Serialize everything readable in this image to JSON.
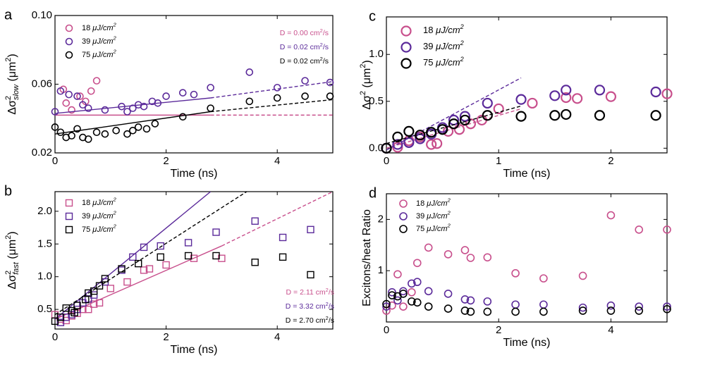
{
  "colors": {
    "c18": "#c84f8c",
    "c39": "#5b2a9a",
    "c75": "#000000"
  },
  "chart_data": [
    {
      "id": "a",
      "panel_label": "a",
      "type": "scatter",
      "marker": "circle",
      "xlabel": "Time (ns)",
      "ylabel": "Δσ²slow (μm²)",
      "ylabel_main": "Δσ",
      "ylabel_sup": "2",
      "ylabel_sub": "slow",
      "ylabel_unit": " (μm",
      "ylabel_unit_sup": "2",
      "ylabel_close": ")",
      "xlim": [
        0,
        5
      ],
      "ylim": [
        0.02,
        0.1
      ],
      "xticks": [
        {
          "v": 0,
          "label": "0"
        },
        {
          "v": 2,
          "label": "2"
        },
        {
          "v": 4,
          "label": "4"
        }
      ],
      "yticks": [
        {
          "v": 0.02,
          "label": "0.02"
        },
        {
          "v": 0.06,
          "label": "0.06"
        },
        {
          "v": 0.1,
          "label": "0.10"
        }
      ],
      "legend": [
        "18 μJ/cm²",
        "39 μJ/cm²",
        "75 μJ/cm²"
      ],
      "annotations": [
        "D = 0.00 cm²/s",
        "D = 0.02 cm²/s",
        "D = 0.02 cm²/s"
      ],
      "series": [
        {
          "name": "18 μJ/cm²",
          "color": "#c84f8c",
          "x": [
            0.15,
            0.3,
            0.45,
            0.55,
            0.65,
            0.75,
            0.2
          ],
          "y": [
            0.057,
            0.045,
            0.053,
            0.05,
            0.056,
            0.062,
            0.049
          ],
          "fit": {
            "solid": [
              [
                0,
                0.042
              ],
              [
                2.8,
                0.042
              ]
            ],
            "dashed": [
              [
                2.8,
                0.042
              ],
              [
                5,
                0.042
              ]
            ]
          }
        },
        {
          "name": "39 μJ/cm²",
          "color": "#5b2a9a",
          "x": [
            0.0,
            0.1,
            0.25,
            0.4,
            0.5,
            0.6,
            0.9,
            1.2,
            1.3,
            1.4,
            1.5,
            1.6,
            1.75,
            1.85,
            2.0,
            2.3,
            2.5,
            2.8,
            3.5,
            4.0,
            4.5,
            4.95
          ],
          "y": [
            0.044,
            0.056,
            0.054,
            0.053,
            0.048,
            0.046,
            0.045,
            0.047,
            0.044,
            0.046,
            0.048,
            0.047,
            0.05,
            0.049,
            0.053,
            0.055,
            0.054,
            0.058,
            0.067,
            0.058,
            0.062,
            0.061
          ],
          "fit": {
            "solid": [
              [
                0,
                0.043
              ],
              [
                2.8,
                0.052
              ]
            ],
            "dashed": [
              [
                2.8,
                0.052
              ],
              [
                5,
                0.0615
              ]
            ]
          }
        },
        {
          "name": "75 μJ/cm²",
          "color": "#000000",
          "x": [
            0.0,
            0.1,
            0.2,
            0.3,
            0.4,
            0.5,
            0.6,
            0.75,
            0.9,
            1.1,
            1.3,
            1.4,
            1.5,
            1.65,
            1.8,
            2.3,
            2.8,
            3.5,
            4.0,
            4.5,
            4.95
          ],
          "y": [
            0.035,
            0.032,
            0.029,
            0.03,
            0.034,
            0.029,
            0.028,
            0.032,
            0.031,
            0.033,
            0.031,
            0.033,
            0.035,
            0.034,
            0.037,
            0.041,
            0.046,
            0.05,
            0.052,
            0.053,
            0.053
          ],
          "fit": {
            "solid": [
              [
                0,
                0.031
              ],
              [
                2.8,
                0.044
              ]
            ],
            "dashed": [
              [
                2.8,
                0.044
              ],
              [
                5,
                0.051
              ]
            ]
          }
        }
      ]
    },
    {
      "id": "b",
      "panel_label": "b",
      "type": "scatter",
      "marker": "square",
      "xlabel": "Time (ns)",
      "ylabel": "Δσ²fast (μm²)",
      "ylabel_main": "Δσ",
      "ylabel_sup": "2",
      "ylabel_sub": "fast",
      "ylabel_unit": " (μm",
      "ylabel_unit_sup": "2",
      "ylabel_close": ")",
      "xlim": [
        0,
        5
      ],
      "ylim": [
        0.2,
        2.3
      ],
      "xticks": [
        {
          "v": 0,
          "label": "0"
        },
        {
          "v": 2,
          "label": "2"
        },
        {
          "v": 4,
          "label": "4"
        }
      ],
      "yticks": [
        {
          "v": 0.5,
          "label": "0.5"
        },
        {
          "v": 1.0,
          "label": "1.0"
        },
        {
          "v": 1.5,
          "label": "1.5"
        },
        {
          "v": 2.0,
          "label": "2.0"
        }
      ],
      "legend": [
        "18 μJ/cm²",
        "39 μJ/cm²",
        "75 μJ/cm²"
      ],
      "annotations": [
        "D = 2.11 cm²/s",
        "D = 3.32 cm²/s",
        "D = 2.70 cm²/s"
      ],
      "series": [
        {
          "name": "18 μJ/cm²",
          "color": "#c84f8c",
          "x": [
            0.0,
            0.1,
            0.2,
            0.3,
            0.4,
            0.5,
            0.6,
            0.7,
            0.8,
            1.0,
            1.3,
            1.6,
            1.7,
            2.0,
            2.5,
            3.0
          ],
          "y": [
            0.42,
            0.35,
            0.33,
            0.4,
            0.44,
            0.5,
            0.5,
            0.58,
            0.6,
            0.82,
            0.92,
            1.1,
            1.12,
            1.18,
            1.28,
            1.28
          ],
          "fit": {
            "solid": [
              [
                0,
                0.35
              ],
              [
                3.0,
                1.47
              ]
            ],
            "dashed": [
              [
                3.0,
                1.47
              ],
              [
                5,
                2.3
              ]
            ]
          }
        },
        {
          "name": "39 μJ/cm²",
          "color": "#5b2a9a",
          "x": [
            0.1,
            0.2,
            0.3,
            0.4,
            0.5,
            0.6,
            0.7,
            0.9,
            1.2,
            1.4,
            1.6,
            1.9,
            2.4,
            2.9,
            3.6,
            4.1,
            4.6
          ],
          "y": [
            0.3,
            0.38,
            0.42,
            0.5,
            0.6,
            0.66,
            0.72,
            0.92,
            1.1,
            1.3,
            1.45,
            1.47,
            1.52,
            1.68,
            1.85,
            1.6,
            1.72
          ],
          "fit": {
            "solid": [
              [
                0,
                0.35
              ],
              [
                2.8,
                2.3
              ]
            ]
          }
        },
        {
          "name": "75 μJ/cm²",
          "color": "#000000",
          "x": [
            0.0,
            0.1,
            0.2,
            0.3,
            0.35,
            0.4,
            0.55,
            0.6,
            0.7,
            0.8,
            0.9,
            1.2,
            1.5,
            1.9,
            2.4,
            2.9,
            3.6,
            4.1,
            4.6
          ],
          "y": [
            0.32,
            0.38,
            0.52,
            0.48,
            0.45,
            0.56,
            0.65,
            0.75,
            0.78,
            0.86,
            0.97,
            1.12,
            1.2,
            1.3,
            1.32,
            1.32,
            1.22,
            1.3,
            1.03
          ],
          "fit": {
            "dashed": [
              [
                0,
                0.42
              ],
              [
                3.45,
                2.3
              ]
            ]
          }
        }
      ]
    },
    {
      "id": "c",
      "panel_label": "c",
      "type": "scatter",
      "marker": "circle",
      "xlabel": "Time (ns)",
      "ylabel": "Δσ² (μm²)",
      "ylabel_main": "Δσ",
      "ylabel_sup": "2",
      "ylabel_sub": "",
      "ylabel_unit": " (μm",
      "ylabel_unit_sup": "2",
      "ylabel_close": ")",
      "xlim": [
        0,
        2.5
      ],
      "ylim": [
        -0.05,
        1.4
      ],
      "xticks": [
        {
          "v": 0,
          "label": "0"
        },
        {
          "v": 1,
          "label": "1"
        },
        {
          "v": 2,
          "label": "2"
        }
      ],
      "yticks": [
        {
          "v": 0,
          "label": "0.0"
        },
        {
          "v": 0.5,
          "label": "0.5"
        },
        {
          "v": 1.0,
          "label": "1.0"
        }
      ],
      "legend": [
        "18 μJ/cm²",
        "39 μJ/cm²",
        "75 μJ/cm²"
      ],
      "annotations": [],
      "series": [
        {
          "name": "18 μJ/cm²",
          "color": "#c84f8c",
          "x": [
            0.0,
            0.1,
            0.2,
            0.3,
            0.4,
            0.45,
            0.55,
            0.65,
            0.75,
            0.85,
            1.0,
            1.3,
            1.6,
            1.7,
            2.0,
            2.5
          ],
          "y": [
            0.0,
            0.01,
            0.08,
            0.12,
            0.04,
            0.05,
            0.18,
            0.2,
            0.26,
            0.3,
            0.42,
            0.48,
            0.54,
            0.53,
            0.55,
            0.58
          ],
          "fit": {
            "dashed": [
              [
                0,
                0.0
              ],
              [
                1.2,
                0.42
              ]
            ]
          }
        },
        {
          "name": "39 μJ/cm²",
          "color": "#5b2a9a",
          "x": [
            0.0,
            0.1,
            0.2,
            0.3,
            0.4,
            0.5,
            0.6,
            0.7,
            0.9,
            1.2,
            1.5,
            1.6,
            1.9,
            2.4
          ],
          "y": [
            0.0,
            0.04,
            0.06,
            0.1,
            0.15,
            0.22,
            0.3,
            0.34,
            0.48,
            0.52,
            0.56,
            0.62,
            0.62,
            0.6
          ],
          "fit": {
            "dashed": [
              [
                0,
                -0.02
              ],
              [
                1.2,
                0.75
              ]
            ]
          }
        },
        {
          "name": "75 μJ/cm²",
          "color": "#000000",
          "x": [
            0.0,
            0.1,
            0.2,
            0.3,
            0.4,
            0.5,
            0.6,
            0.7,
            0.9,
            1.2,
            1.5,
            1.6,
            1.9,
            2.4
          ],
          "y": [
            0.0,
            0.12,
            0.18,
            0.14,
            0.17,
            0.2,
            0.26,
            0.3,
            0.35,
            0.34,
            0.35,
            0.36,
            0.35,
            0.35
          ],
          "fit": {
            "dashed": [
              [
                0,
                0.05
              ],
              [
                1.2,
                0.45
              ]
            ]
          }
        }
      ]
    },
    {
      "id": "d",
      "panel_label": "d",
      "type": "scatter",
      "marker": "circle",
      "xlabel": "Time (ns)",
      "ylabel": "Excitons/heat Ratio",
      "ylabel_main": "Excitons/heat Ratio",
      "ylabel_sup": "",
      "ylabel_sub": "",
      "ylabel_unit": "",
      "ylabel_unit_sup": "",
      "ylabel_close": "",
      "xlim": [
        0,
        5
      ],
      "ylim": [
        0,
        2.5
      ],
      "xticks": [
        {
          "v": 0,
          "label": "0"
        },
        {
          "v": 2,
          "label": "2"
        },
        {
          "v": 4,
          "label": "4"
        }
      ],
      "yticks": [
        {
          "v": 1,
          "label": "1"
        },
        {
          "v": 2,
          "label": "2"
        }
      ],
      "legend": [
        "18 μJ/cm²",
        "39 μJ/cm²",
        "75 μJ/cm²"
      ],
      "annotations": [],
      "series": [
        {
          "name": "18 μJ/cm²",
          "color": "#c84f8c",
          "x": [
            0.0,
            0.1,
            0.2,
            0.3,
            0.45,
            0.55,
            0.75,
            1.1,
            1.4,
            1.5,
            1.8,
            2.3,
            2.8,
            3.5,
            4.0,
            4.5,
            5.0
          ],
          "y": [
            0.22,
            0.32,
            0.93,
            0.3,
            0.58,
            1.15,
            1.45,
            1.32,
            1.4,
            1.25,
            1.26,
            0.95,
            0.85,
            0.9,
            2.08,
            1.8,
            1.8
          ],
          "fit": {}
        },
        {
          "name": "39 μJ/cm²",
          "color": "#5b2a9a",
          "x": [
            0.0,
            0.1,
            0.2,
            0.3,
            0.45,
            0.55,
            0.75,
            1.1,
            1.4,
            1.5,
            1.8,
            2.3,
            2.8,
            3.5,
            4.0,
            4.5,
            5.0
          ],
          "y": [
            0.3,
            0.58,
            0.42,
            0.6,
            0.75,
            0.78,
            0.6,
            0.55,
            0.44,
            0.42,
            0.4,
            0.34,
            0.34,
            0.28,
            0.32,
            0.3,
            0.3
          ],
          "fit": {}
        },
        {
          "name": "75 μJ/cm²",
          "color": "#000000",
          "x": [
            0.0,
            0.1,
            0.2,
            0.3,
            0.45,
            0.55,
            0.75,
            1.1,
            1.4,
            1.5,
            1.8,
            2.3,
            2.8,
            3.5,
            4.0,
            4.5,
            5.0
          ],
          "y": [
            0.35,
            0.52,
            0.5,
            0.55,
            0.4,
            0.38,
            0.3,
            0.26,
            0.22,
            0.2,
            0.2,
            0.2,
            0.2,
            0.22,
            0.22,
            0.22,
            0.25
          ],
          "fit": {}
        }
      ]
    }
  ]
}
